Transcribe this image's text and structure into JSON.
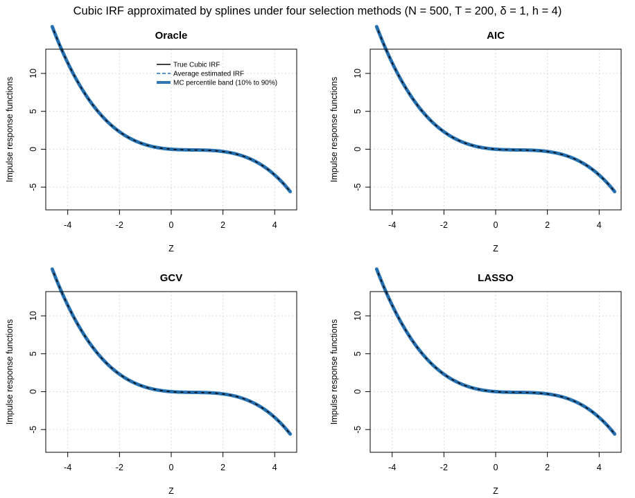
{
  "page": {
    "title": "Cubic IRF approximated by splines under four selection methods (N = 500, T = 200, δ = 1, h = 4)"
  },
  "legend": {
    "entries": [
      {
        "label": "True Cubic IRF",
        "color": "#000000",
        "style": "solid"
      },
      {
        "label": "Average estimated IRF",
        "color": "#1f6fb2",
        "style": "dashed"
      },
      {
        "label": "MC percentile band (10% to 90%)",
        "color": "#2f78b8",
        "style": "band"
      }
    ]
  },
  "chart_data": [
    {
      "type": "line",
      "title": "Oracle",
      "xlabel": "Z",
      "ylabel": "Impulse response functions",
      "xlim": [
        -4.85,
        4.85
      ],
      "ylim": [
        -8.0,
        13.2
      ],
      "x_ticks": [
        -4,
        -2,
        0,
        2,
        4
      ],
      "y_ticks": [
        -5,
        0,
        5,
        10
      ],
      "grid": true,
      "legend_position": "top",
      "x_range": [
        -4.6,
        4.6
      ],
      "irf_coefficients": {
        "a0": 0,
        "a1": -0.25,
        "a2": 0.25,
        "a3": -0.1
      },
      "series": [
        {
          "name": "True Cubic IRF",
          "color": "#000000"
        },
        {
          "name": "Average estimated IRF",
          "color": "#1f6fb2"
        },
        {
          "name": "MC percentile band (10% to 90%)",
          "color": "#2f78b8"
        }
      ]
    },
    {
      "type": "line",
      "title": "AIC",
      "xlabel": "Z",
      "ylabel": "Impulse response functions",
      "xlim": [
        -4.85,
        4.85
      ],
      "ylim": [
        -8.0,
        13.2
      ],
      "x_ticks": [
        -4,
        -2,
        0,
        2,
        4
      ],
      "y_ticks": [
        -5,
        0,
        5,
        10
      ],
      "grid": true,
      "x_range": [
        -4.6,
        4.6
      ],
      "irf_coefficients": {
        "a0": 0,
        "a1": -0.25,
        "a2": 0.25,
        "a3": -0.1
      },
      "series": [
        {
          "name": "True Cubic IRF",
          "color": "#000000"
        },
        {
          "name": "Average estimated IRF",
          "color": "#1f6fb2"
        },
        {
          "name": "MC percentile band (10% to 90%)",
          "color": "#2f78b8"
        }
      ]
    },
    {
      "type": "line",
      "title": "GCV",
      "xlabel": "Z",
      "ylabel": "Impulse response functions",
      "xlim": [
        -4.85,
        4.85
      ],
      "ylim": [
        -8.0,
        13.2
      ],
      "x_ticks": [
        -4,
        -2,
        0,
        2,
        4
      ],
      "y_ticks": [
        -5,
        0,
        5,
        10
      ],
      "grid": true,
      "x_range": [
        -4.6,
        4.6
      ],
      "irf_coefficients": {
        "a0": 0,
        "a1": -0.25,
        "a2": 0.25,
        "a3": -0.1
      },
      "series": [
        {
          "name": "True Cubic IRF",
          "color": "#000000"
        },
        {
          "name": "Average estimated IRF",
          "color": "#1f6fb2"
        },
        {
          "name": "MC percentile band (10% to 90%)",
          "color": "#2f78b8"
        }
      ]
    },
    {
      "type": "line",
      "title": "LASSO",
      "xlabel": "Z",
      "ylabel": "Impulse response functions",
      "xlim": [
        -4.85,
        4.85
      ],
      "ylim": [
        -8.0,
        13.2
      ],
      "x_ticks": [
        -4,
        -2,
        0,
        2,
        4
      ],
      "y_ticks": [
        -5,
        0,
        5,
        10
      ],
      "grid": true,
      "x_range": [
        -4.6,
        4.6
      ],
      "irf_coefficients": {
        "a0": 0,
        "a1": -0.25,
        "a2": 0.25,
        "a3": -0.1
      },
      "series": [
        {
          "name": "True Cubic IRF",
          "color": "#000000"
        },
        {
          "name": "Average estimated IRF",
          "color": "#1f6fb2"
        },
        {
          "name": "MC percentile band (10% to 90%)",
          "color": "#2f78b8"
        }
      ]
    }
  ]
}
